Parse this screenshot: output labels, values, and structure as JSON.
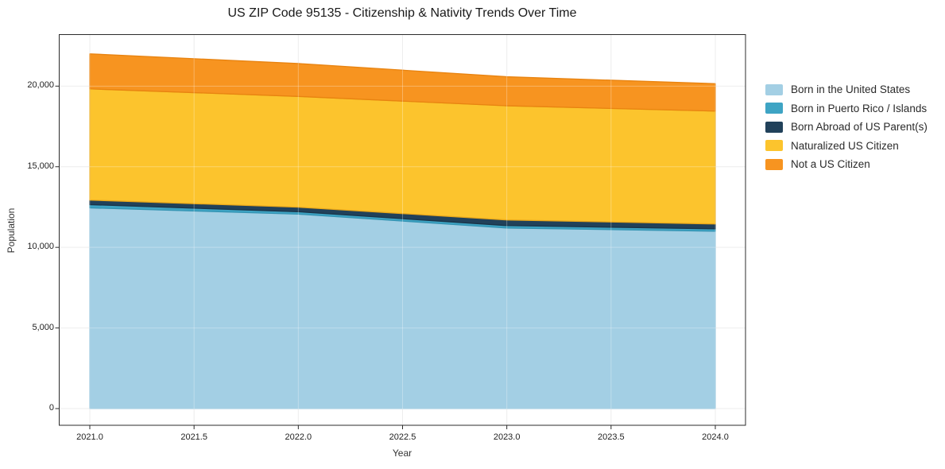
{
  "title": "US ZIP Code 95135 - Citizenship & Nativity Trends Over Time",
  "axes": {
    "x_label": "Year",
    "y_label": "Population",
    "x_ticks": [
      {
        "value": 2021.0,
        "label": "2021.0"
      },
      {
        "value": 2021.5,
        "label": "2021.5"
      },
      {
        "value": 2022.0,
        "label": "2022.0"
      },
      {
        "value": 2022.5,
        "label": "2022.5"
      },
      {
        "value": 2023.0,
        "label": "2023.0"
      },
      {
        "value": 2023.5,
        "label": "2023.5"
      },
      {
        "value": 2024.0,
        "label": "2024.0"
      }
    ],
    "y_ticks": [
      {
        "value": 0,
        "label": "0"
      },
      {
        "value": 5000,
        "label": "5,000"
      },
      {
        "value": 10000,
        "label": "10,000"
      },
      {
        "value": 15000,
        "label": "15,000"
      },
      {
        "value": 20000,
        "label": "20,000"
      }
    ]
  },
  "chart_data": {
    "type": "area",
    "stacked": true,
    "title": "US ZIP Code 95135 - Citizenship & Nativity Trends Over Time",
    "xlabel": "Year",
    "ylabel": "Population",
    "x": [
      2021,
      2022,
      2023,
      2024
    ],
    "series": [
      {
        "name": "Born in the United States",
        "color": "#a3cfe4",
        "edge": "#8fc2db",
        "values": [
          12450,
          12060,
          11200,
          11000
        ]
      },
      {
        "name": "Born in Puerto Rico / Islands",
        "color": "#3ea4c4",
        "edge": "#3494b3",
        "values": [
          200,
          150,
          150,
          150
        ]
      },
      {
        "name": "Born Abroad of US Parent(s)",
        "color": "#21415a",
        "edge": "#1a3448",
        "values": [
          280,
          280,
          350,
          300
        ]
      },
      {
        "name": "Naturalized US Citizen",
        "color": "#fcc42d",
        "edge": "#eaa81a",
        "values": [
          6900,
          6870,
          7080,
          7000
        ]
      },
      {
        "name": "Not a US Citizen",
        "color": "#f79420",
        "edge": "#e88310",
        "values": [
          2170,
          2040,
          1800,
          1700
        ]
      }
    ],
    "stack_totals": [
      22000,
      21400,
      20580,
      20150
    ],
    "xlim": [
      2020.85,
      2024.15
    ],
    "ylim": [
      0,
      23200
    ],
    "grid": true,
    "legend_position": "right of plot"
  }
}
